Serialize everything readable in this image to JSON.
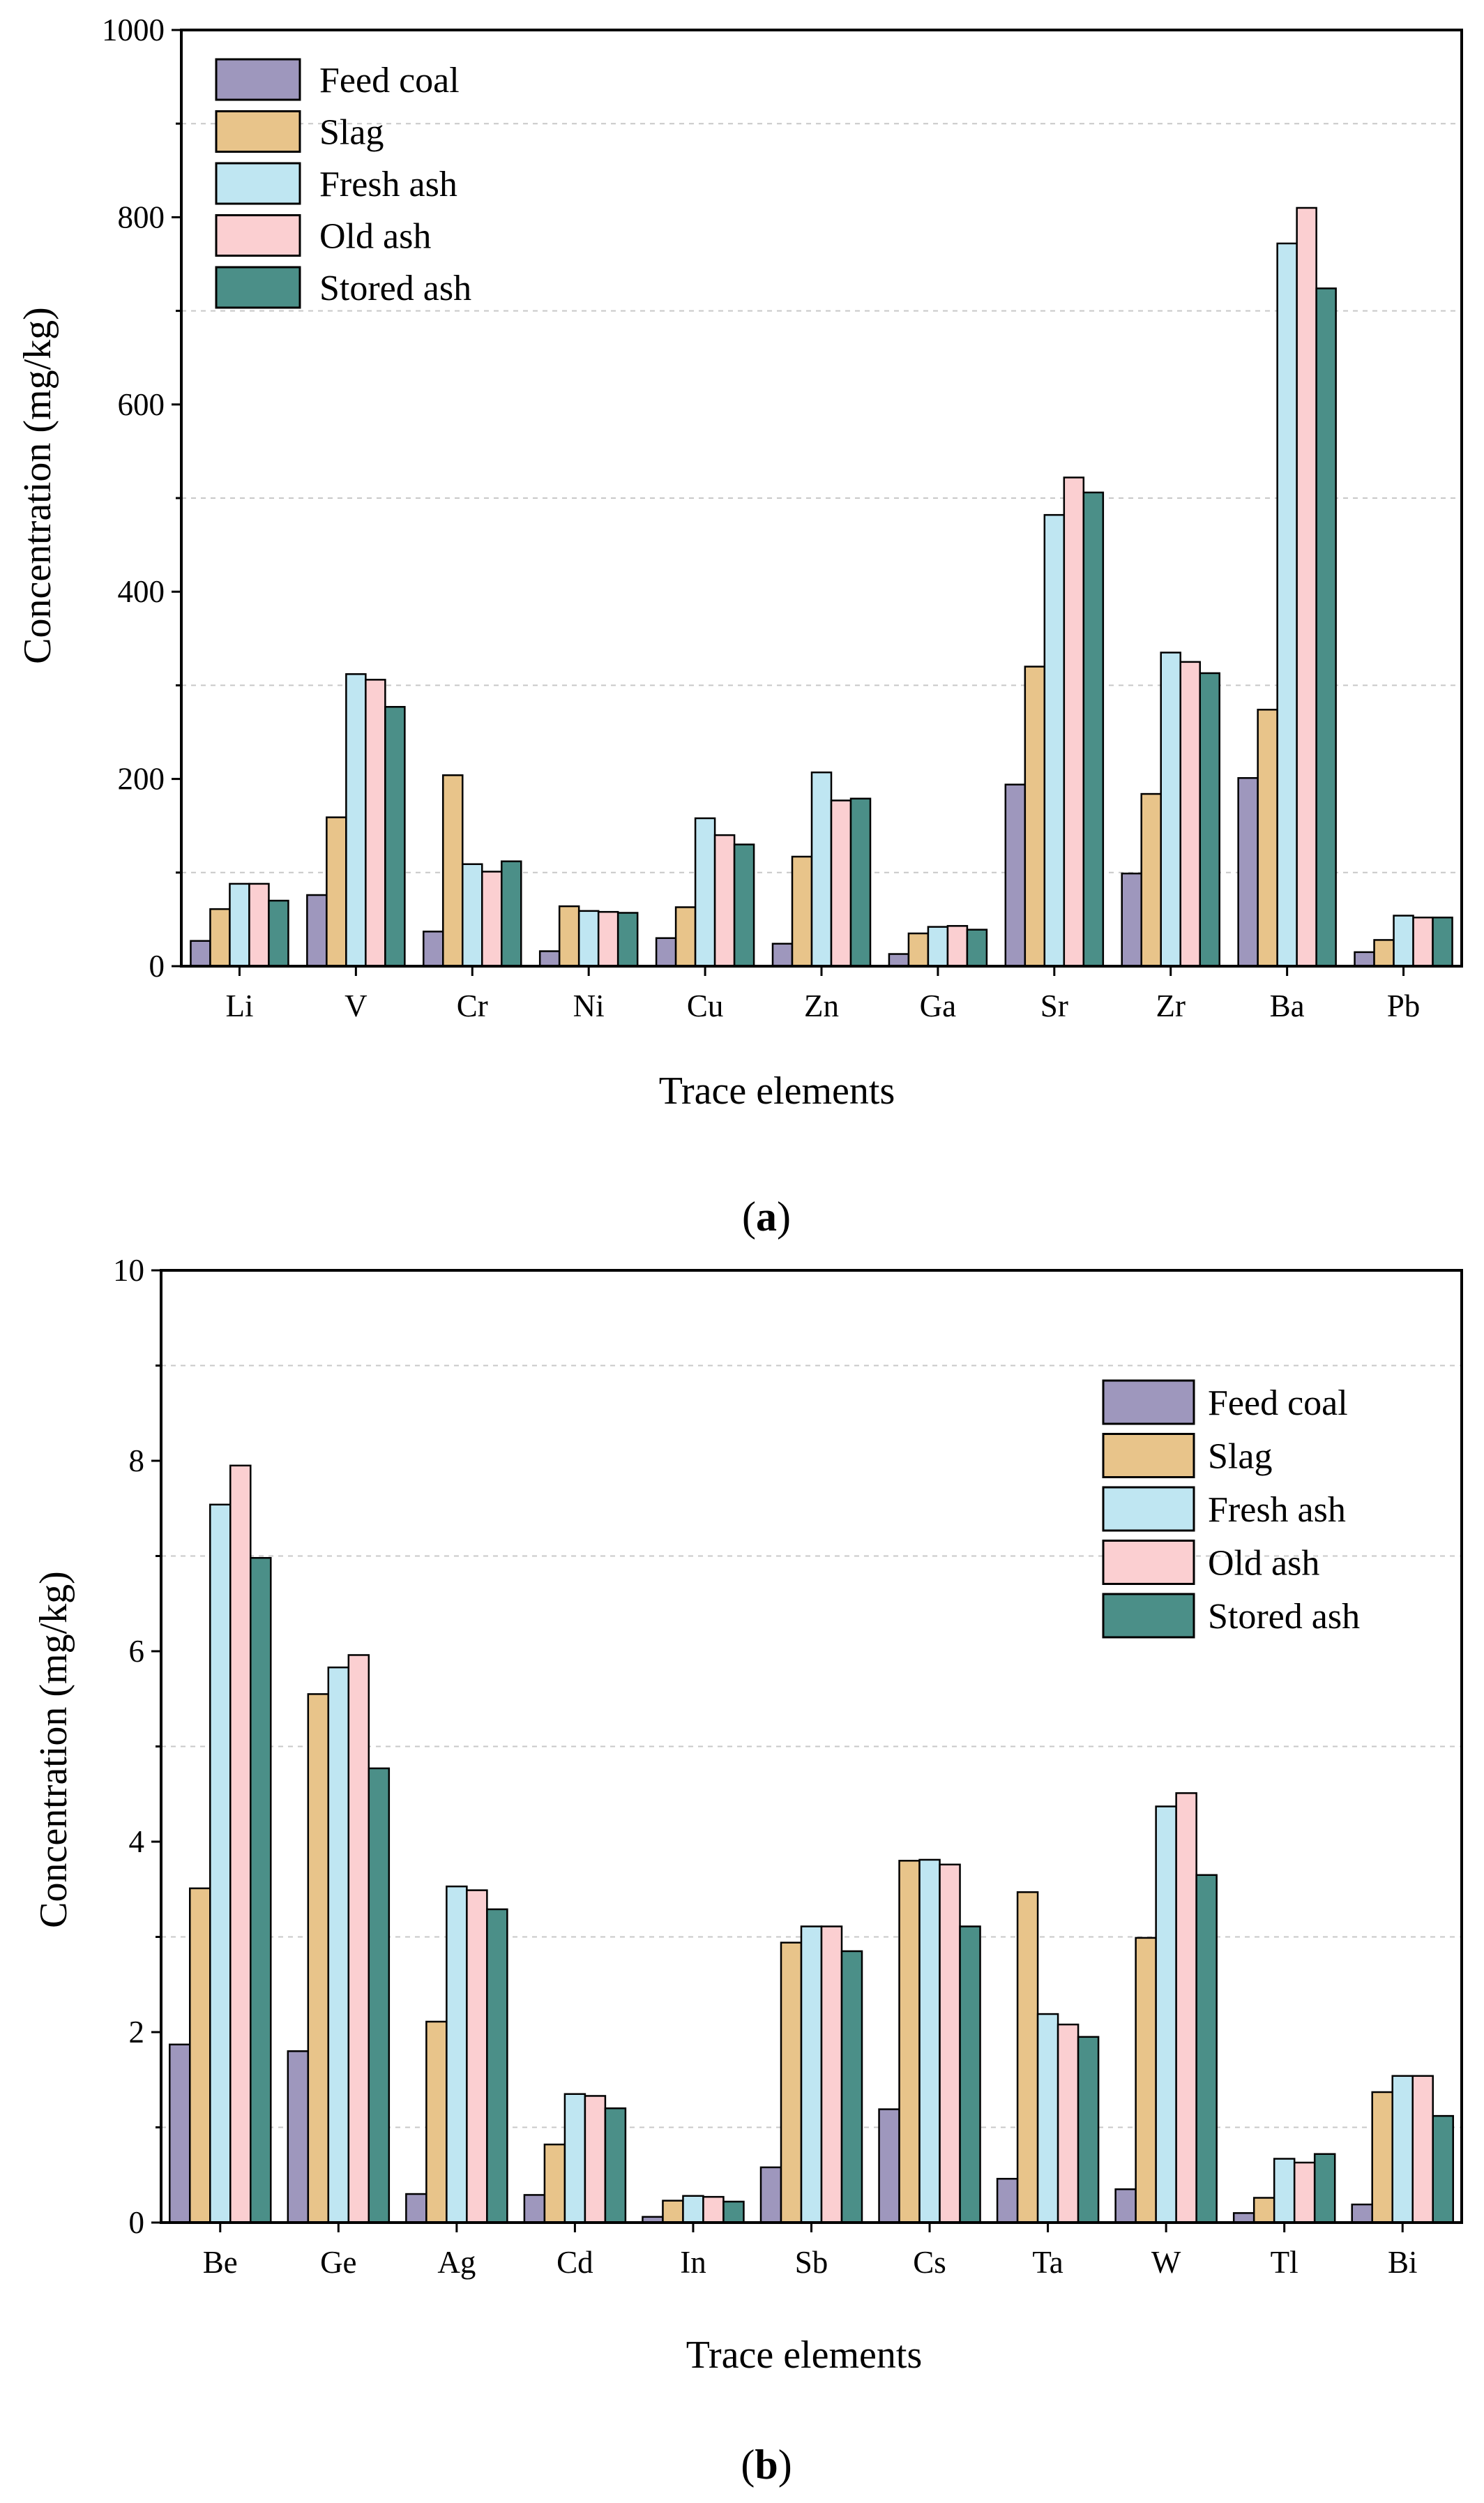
{
  "series_colors": {
    "Feed coal": "#9e97bd",
    "Slag": "#e8c48a",
    "Fresh ash": "#bfe6f2",
    "Old ash": "#fbcfd1",
    "Stored ash": "#4b8f88"
  },
  "captions": [
    {
      "open": "(",
      "letter": "a",
      "close": ")"
    },
    {
      "open": "(",
      "letter": "b",
      "close": ")"
    }
  ],
  "chart_data": [
    {
      "type": "bar",
      "panel": "a",
      "title": "",
      "xlabel": "Trace elements",
      "ylabel": "Concentration (mg/kg)",
      "ylim": [
        0,
        1000
      ],
      "yticks": [
        0,
        200,
        400,
        600,
        800,
        1000
      ],
      "ytick_labels": [
        "0",
        "200",
        "400",
        "600",
        "800",
        "1000"
      ],
      "legend_position": "top-left",
      "categories": [
        "Li",
        "V",
        "Cr",
        "Ni",
        "Cu",
        "Zn",
        "Ga",
        "Sr",
        "Zr",
        "Ba",
        "Pb"
      ],
      "series": [
        {
          "name": "Feed coal",
          "values": [
            27,
            76,
            37,
            16,
            30,
            24,
            13,
            194,
            99,
            201,
            15
          ]
        },
        {
          "name": "Slag",
          "values": [
            61,
            159,
            204,
            64,
            63,
            117,
            35,
            320,
            184,
            274,
            28
          ]
        },
        {
          "name": "Fresh ash",
          "values": [
            88,
            312,
            109,
            59,
            158,
            207,
            42,
            482,
            335,
            772,
            54
          ]
        },
        {
          "name": "Old ash",
          "values": [
            88,
            306,
            101,
            58,
            140,
            177,
            43,
            522,
            325,
            810,
            52
          ]
        },
        {
          "name": "Stored ash",
          "values": [
            70,
            277,
            112,
            57,
            130,
            179,
            39,
            506,
            313,
            724,
            52
          ]
        }
      ]
    },
    {
      "type": "bar",
      "panel": "b",
      "title": "",
      "xlabel": "Trace elements",
      "ylabel": "Concentration (mg/kg)",
      "ylim": [
        0,
        10
      ],
      "yticks": [
        0,
        2,
        4,
        6,
        8,
        10
      ],
      "ytick_labels": [
        "0",
        "2",
        "4",
        "6",
        "8",
        "10"
      ],
      "legend_position": "top-right",
      "categories": [
        "Be",
        "Ge",
        "Ag",
        "Cd",
        "In",
        "Sb",
        "Cs",
        "Ta",
        "W",
        "Tl",
        "Bi"
      ],
      "series": [
        {
          "name": "Feed coal",
          "values": [
            1.87,
            1.8,
            0.3,
            0.29,
            0.06,
            0.58,
            1.19,
            0.46,
            0.35,
            0.1,
            0.19
          ]
        },
        {
          "name": "Slag",
          "values": [
            3.51,
            5.55,
            2.11,
            0.82,
            0.23,
            2.94,
            3.8,
            3.47,
            2.99,
            0.26,
            1.37
          ]
        },
        {
          "name": "Fresh ash",
          "values": [
            7.54,
            5.83,
            3.53,
            1.35,
            0.28,
            3.11,
            3.81,
            2.19,
            4.37,
            0.67,
            1.54
          ]
        },
        {
          "name": "Old ash",
          "values": [
            7.95,
            5.96,
            3.49,
            1.33,
            0.27,
            3.11,
            3.76,
            2.08,
            4.51,
            0.63,
            1.54
          ]
        },
        {
          "name": "Stored ash",
          "values": [
            6.98,
            4.77,
            3.29,
            1.2,
            0.22,
            2.85,
            3.11,
            1.95,
            3.65,
            0.72,
            1.12
          ]
        }
      ]
    }
  ]
}
